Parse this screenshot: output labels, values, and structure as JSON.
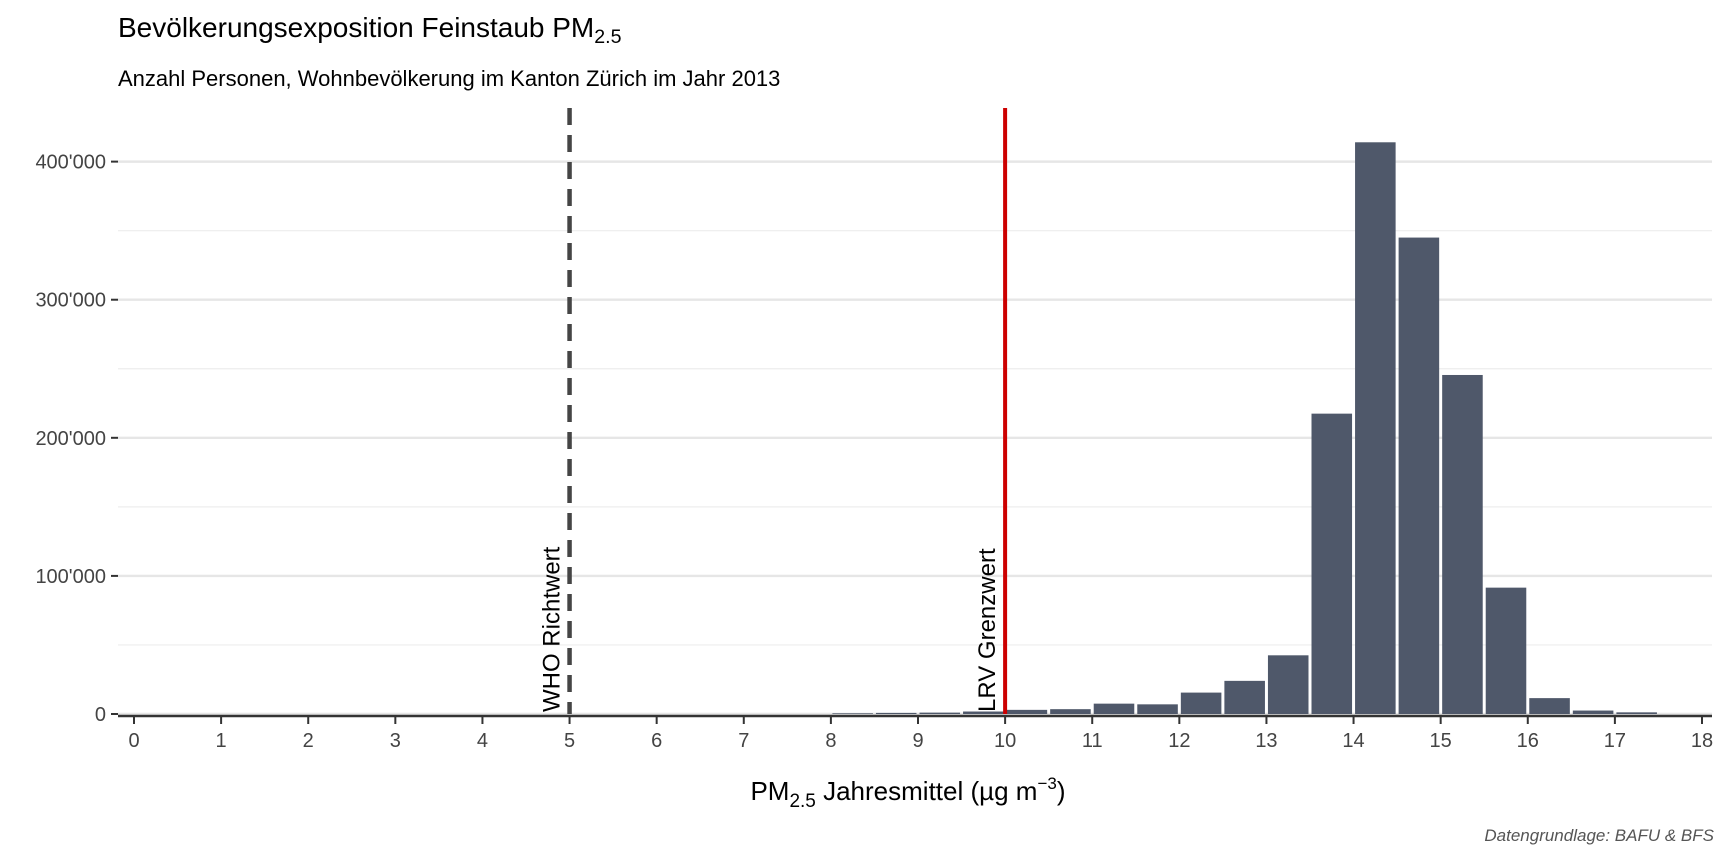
{
  "title_main": "Bevölkerungsexposition Feinstaub PM",
  "title_sub": "2.5",
  "subtitle": "Anzahl Personen, Wohnbevölkerung im Kanton Zürich im Jahr 2013",
  "caption": "Datengrundlage: BAFU & BFS",
  "chart_data": {
    "type": "bar",
    "xlabel": {
      "prefix": "PM",
      "sub": "2.5",
      "middle": " Jahresmittel (µg m",
      "sup": "−3",
      "suffix": ")"
    },
    "ylabel": "",
    "xlim": [
      0,
      18
    ],
    "ylim": [
      0,
      420000
    ],
    "x_ticks": [
      0,
      1,
      2,
      3,
      4,
      5,
      6,
      7,
      8,
      9,
      10,
      11,
      12,
      13,
      14,
      15,
      16,
      17,
      18
    ],
    "y_ticks": [
      0,
      100000,
      200000,
      300000,
      400000
    ],
    "y_tick_labels": [
      "0",
      "100'000",
      "200'000",
      "300'000",
      "400'000"
    ],
    "bin_width": 0.5,
    "bar_color": "#4f586a",
    "bins": [
      8.25,
      8.75,
      9.25,
      9.75,
      10.25,
      10.75,
      11.25,
      11.75,
      12.25,
      12.75,
      13.25,
      13.75,
      14.25,
      14.75,
      15.25,
      15.75,
      16.25,
      16.75,
      17.25
    ],
    "values": [
      500,
      800,
      1000,
      1800,
      3000,
      3500,
      7500,
      7000,
      15500,
      24000,
      42500,
      217500,
      414000,
      345000,
      245500,
      91500,
      11500,
      2500,
      1200
    ],
    "grid": true,
    "reference_lines": [
      {
        "x": 5,
        "label": "WHO Richtwert",
        "style": "dashed",
        "color": "#454545"
      },
      {
        "x": 10,
        "label": "LRV Grenzwert",
        "style": "solid",
        "color": "#cc0000"
      }
    ]
  }
}
